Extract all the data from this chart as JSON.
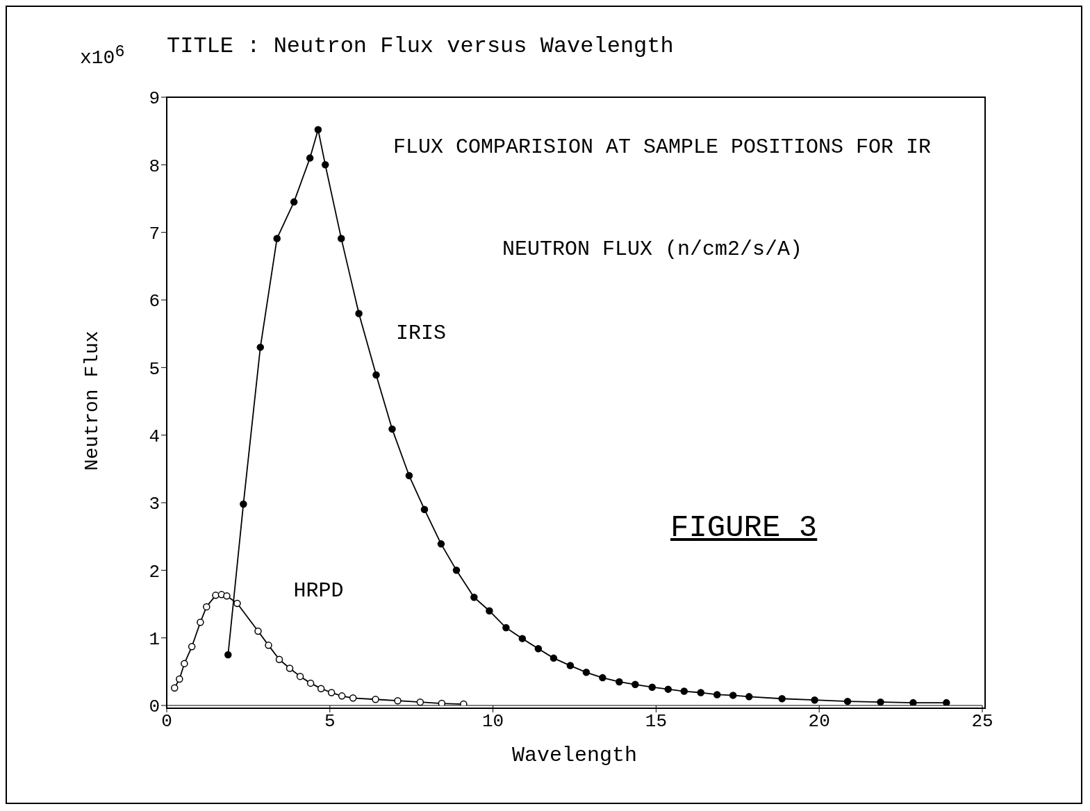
{
  "chart_data": {
    "type": "line",
    "title": "TITLE : Neutron Flux versus Wavelength",
    "xlabel": "Wavelength",
    "ylabel": "Neutron Flux",
    "annotations": [
      "x10$^{6}$",
      "FLUX COMPARISION AT SAMPLE POSITIONS FOR IR",
      "NEUTRON FLUX (n/cm2/s/A)",
      "FIGURE 3"
    ],
    "xlim": [
      0,
      25
    ],
    "xticks": [
      0,
      5,
      10,
      15,
      20,
      25
    ],
    "ylim": [
      0,
      9
    ],
    "yticks": [
      0,
      1,
      2,
      3,
      4,
      5,
      6,
      7,
      8,
      9
    ],
    "marker": "circle",
    "line_style": "solid",
    "series": [
      {
        "name": "IRIS",
        "color": "#000000",
        "x": [
          1.88,
          2.35,
          2.87,
          3.38,
          3.9,
          4.39,
          4.64,
          4.86,
          5.35,
          5.89,
          6.42,
          6.91,
          7.43,
          7.9,
          8.41,
          8.88,
          9.42,
          9.89,
          10.4,
          10.9,
          11.39,
          11.86,
          12.37,
          12.86,
          13.36,
          13.87,
          14.36,
          14.88,
          15.37,
          15.86,
          16.37,
          16.87,
          17.36,
          17.85,
          18.86,
          19.86,
          20.87,
          21.88,
          22.88,
          23.9
        ],
        "values": [
          0.75,
          2.98,
          5.3,
          6.91,
          7.45,
          8.1,
          8.52,
          8.0,
          6.91,
          5.8,
          4.89,
          4.09,
          3.4,
          2.9,
          2.39,
          2.0,
          1.6,
          1.4,
          1.15,
          0.99,
          0.84,
          0.7,
          0.59,
          0.49,
          0.41,
          0.35,
          0.31,
          0.27,
          0.24,
          0.21,
          0.19,
          0.16,
          0.15,
          0.13,
          0.1,
          0.08,
          0.06,
          0.05,
          0.04,
          0.04
        ]
      },
      {
        "name": "HRPD",
        "color": "#000000",
        "x": [
          0.24,
          0.39,
          0.54,
          0.77,
          1.03,
          1.22,
          1.5,
          1.68,
          1.84,
          2.16,
          2.8,
          3.12,
          3.45,
          3.77,
          4.09,
          4.41,
          4.73,
          5.05,
          5.37,
          5.71,
          6.4,
          7.08,
          7.77,
          8.43,
          9.1
        ],
        "values": [
          0.26,
          0.39,
          0.62,
          0.87,
          1.23,
          1.46,
          1.63,
          1.64,
          1.62,
          1.51,
          1.1,
          0.89,
          0.68,
          0.55,
          0.43,
          0.33,
          0.25,
          0.19,
          0.14,
          0.11,
          0.09,
          0.07,
          0.05,
          0.03,
          0.02
        ]
      }
    ]
  }
}
